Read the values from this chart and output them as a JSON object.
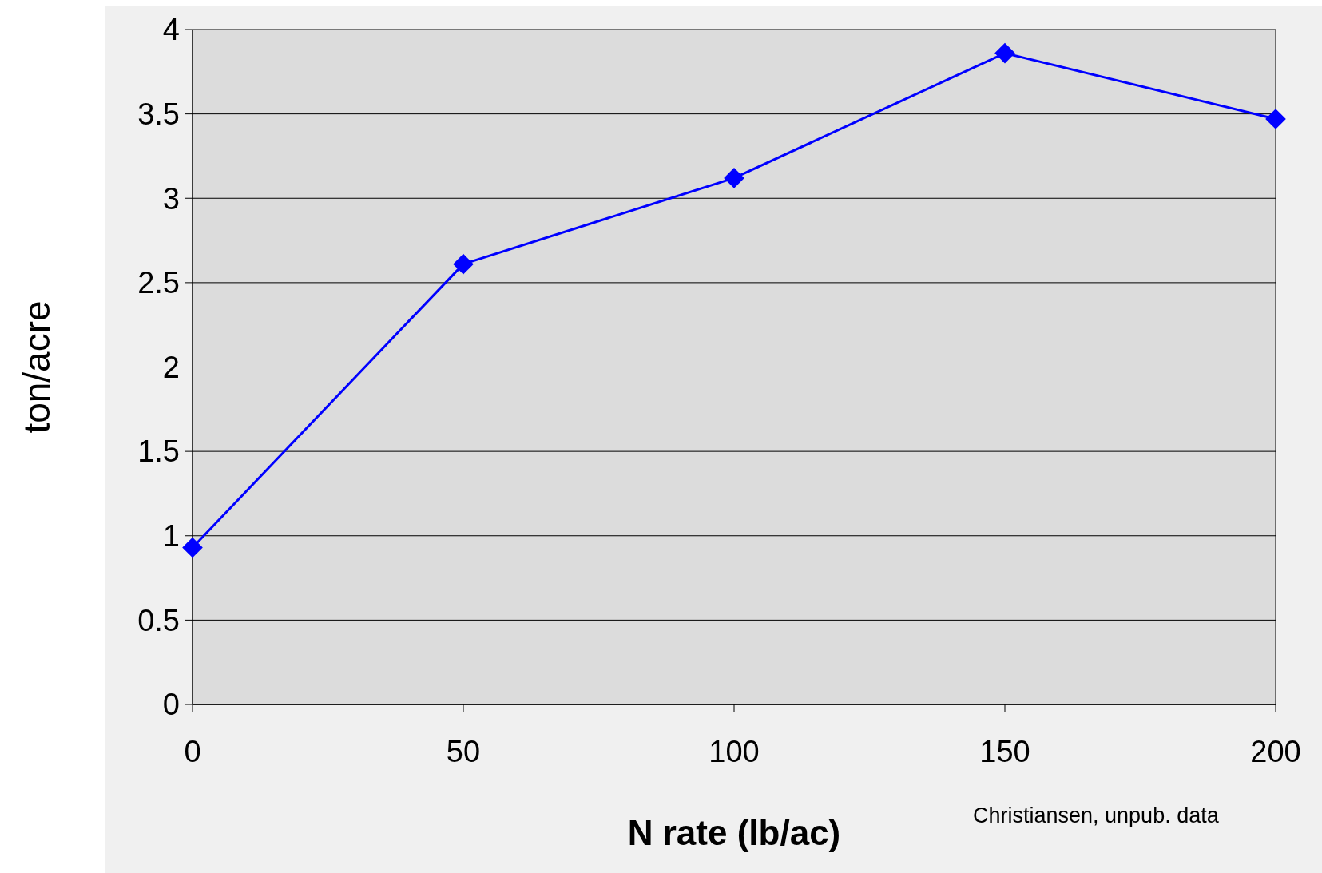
{
  "chart_data": {
    "type": "line",
    "xlabel": "N rate (lb/ac)",
    "ylabel": "ton/acre",
    "x": [
      0,
      50,
      100,
      150,
      200
    ],
    "series": [
      {
        "color": "#0000ff",
        "values": [
          0.93,
          2.61,
          3.12,
          3.86,
          3.47
        ]
      }
    ],
    "xlim": [
      0,
      200
    ],
    "xticks": [
      0,
      50,
      100,
      150,
      200
    ],
    "ylim": [
      0,
      4
    ],
    "yticks": [
      0,
      0.5,
      1,
      1.5,
      2,
      2.5,
      3,
      3.5,
      4
    ],
    "grid": "y",
    "marker": "diamond",
    "line_style": "solid",
    "annotations": [
      "Christiansen, unpub. data"
    ]
  }
}
